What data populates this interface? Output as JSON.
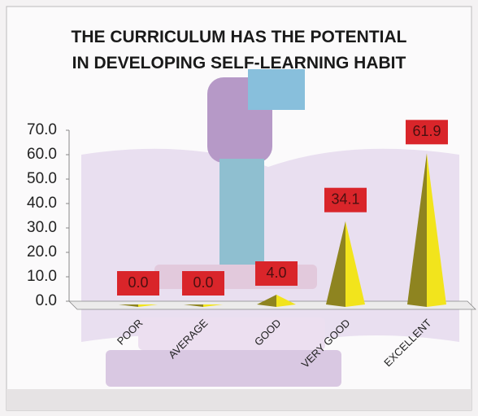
{
  "chart_data": {
    "type": "pyramid",
    "title": "THE CURRICULUM HAS THE POTENTIAL IN DEVELOPING SELF-LEARNING HABIT",
    "categories": [
      "POOR",
      "AVERAGE",
      "GOOD",
      "VERY GOOD",
      "EXCELLENT"
    ],
    "values": [
      0.0,
      0.0,
      4.0,
      34.1,
      61.9
    ],
    "value_labels": [
      "0.0",
      "0.0",
      "4.0",
      "34.1",
      "61.9"
    ],
    "color": "#f2e41c",
    "ylim": [
      0,
      70
    ],
    "yticks": [
      {
        "value": 0,
        "label": "0.0"
      },
      {
        "value": 10,
        "label": "10.0"
      },
      {
        "value": 20,
        "label": "20.0"
      },
      {
        "value": 30,
        "label": "30.0"
      },
      {
        "value": 40,
        "label": "40.0"
      },
      {
        "value": 50,
        "label": "50.0"
      },
      {
        "value": 60,
        "label": "60.0"
      },
      {
        "value": 70,
        "label": "70.0"
      }
    ]
  }
}
